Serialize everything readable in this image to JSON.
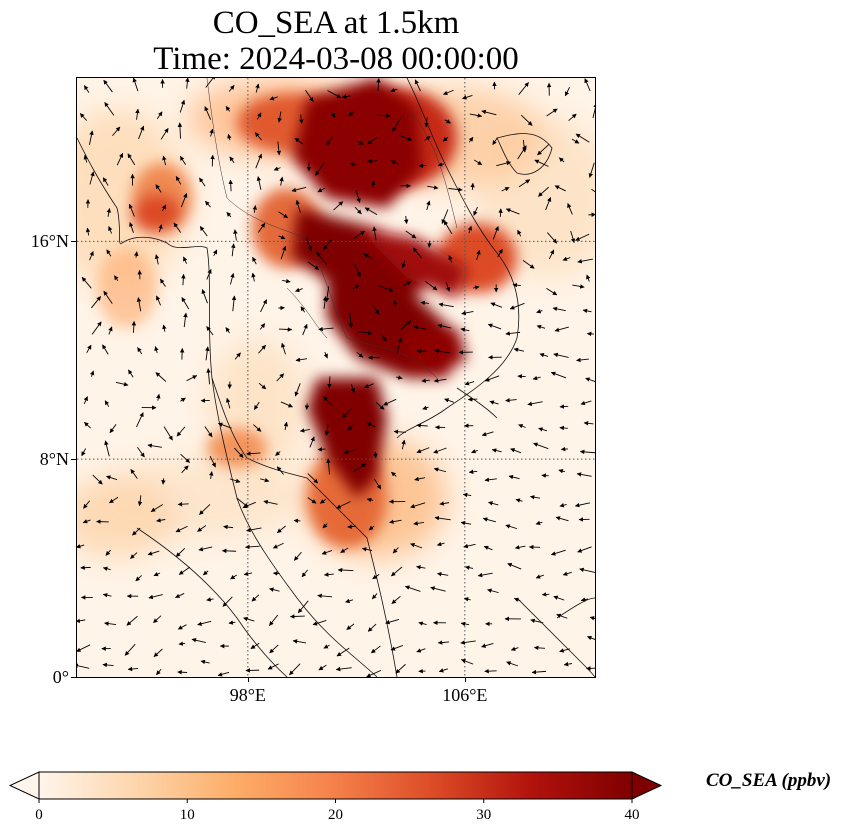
{
  "title_line1": "CO_SEA at 1.5km",
  "title_line2": "Time: 2024-03-08 00:00:00",
  "map": {
    "lon_range": [
      91.7,
      110.8
    ],
    "lat_range": [
      0,
      22
    ],
    "lat_ticks": [
      {
        "value": 0,
        "label": "0°"
      },
      {
        "value": 8,
        "label": "8°N"
      },
      {
        "value": 16,
        "label": "16°N"
      }
    ],
    "lon_ticks": [
      {
        "value": 98,
        "label": "98°E"
      },
      {
        "value": 106,
        "label": "106°E"
      }
    ],
    "gridlines": "dotted"
  },
  "colorbar": {
    "label": "CO_SEA (ppbv)",
    "min": 0,
    "max": 40,
    "ticks": [
      {
        "v": 0,
        "label": "0"
      },
      {
        "v": 10,
        "label": "10"
      },
      {
        "v": 20,
        "label": "20"
      },
      {
        "v": 30,
        "label": "30"
      },
      {
        "v": 40,
        "label": "40"
      }
    ],
    "colormap": [
      "#fff5eb",
      "#fdd5ab",
      "#fdac67",
      "#f5804a",
      "#dc4b27",
      "#b1120c",
      "#7f0000"
    ],
    "extend": "both"
  },
  "chart_data": {
    "type": "heatmap",
    "variable": "CO_SEA",
    "units": "ppbv",
    "level": "1.5km",
    "time": "2024-03-08 00:00:00",
    "plumes": [
      {
        "lon": 102.5,
        "lat": 19.5,
        "value": 40
      },
      {
        "lon": 101.0,
        "lat": 17.0,
        "value": 40
      },
      {
        "lon": 103.5,
        "lat": 15.5,
        "value": 40
      },
      {
        "lon": 103.0,
        "lat": 13.0,
        "value": 40
      },
      {
        "lon": 102.8,
        "lat": 10.2,
        "value": 38
      },
      {
        "lon": 104.0,
        "lat": 11.8,
        "value": 36
      },
      {
        "lon": 105.2,
        "lat": 14.8,
        "value": 30
      },
      {
        "lon": 104.5,
        "lat": 18.5,
        "value": 26
      },
      {
        "lon": 95.2,
        "lat": 17.8,
        "value": 22
      },
      {
        "lon": 93.5,
        "lat": 19.5,
        "value": 16
      },
      {
        "lon": 99.5,
        "lat": 9.2,
        "value": 14
      },
      {
        "lon": 100.5,
        "lat": 20.5,
        "value": 20
      },
      {
        "lon": 108.5,
        "lat": 17.0,
        "value": 9
      },
      {
        "lon": 97.0,
        "lat": 6.0,
        "value": 7
      }
    ]
  }
}
